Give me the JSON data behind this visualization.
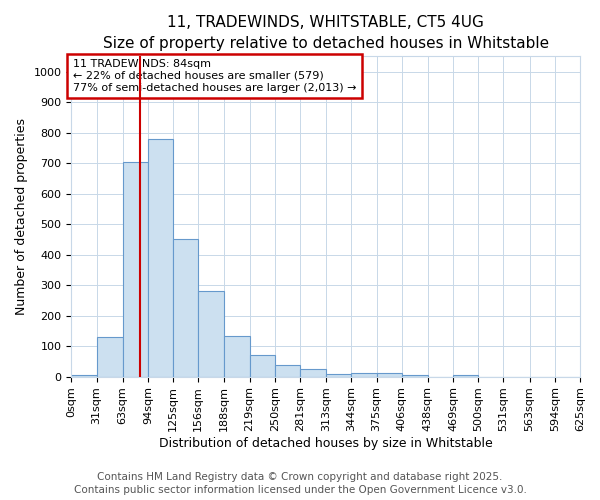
{
  "title_line1": "11, TRADEWINDS, WHITSTABLE, CT5 4UG",
  "title_line2": "Size of property relative to detached houses in Whitstable",
  "xlabel": "Distribution of detached houses by size in Whitstable",
  "ylabel": "Number of detached properties",
  "bar_values": [
    5,
    130,
    705,
    780,
    450,
    280,
    133,
    70,
    38,
    25,
    10,
    11,
    13,
    5,
    0,
    5,
    0,
    0,
    0,
    0
  ],
  "bin_edges": [
    0,
    31,
    63,
    94,
    125,
    156,
    188,
    219,
    250,
    281,
    313,
    344,
    375,
    406,
    438,
    469,
    500,
    531,
    563,
    594,
    625
  ],
  "bar_color": "#cce0f0",
  "bar_edgecolor": "#6699cc",
  "vline_x": 84,
  "vline_color": "#cc0000",
  "ylim": [
    0,
    1050
  ],
  "xlim": [
    0,
    625
  ],
  "annotation_text": "11 TRADEWINDS: 84sqm\n← 22% of detached houses are smaller (579)\n77% of semi-detached houses are larger (2,013) →",
  "annotation_box_color": "#cc0000",
  "footnote_line1": "Contains HM Land Registry data © Crown copyright and database right 2025.",
  "footnote_line2": "Contains public sector information licensed under the Open Government Licence v3.0.",
  "bg_color": "#ffffff",
  "grid_color": "#c8d8e8",
  "title_fontsize": 11,
  "subtitle_fontsize": 10,
  "axis_label_fontsize": 9,
  "tick_fontsize": 8,
  "annot_fontsize": 8,
  "footnote_fontsize": 7.5
}
